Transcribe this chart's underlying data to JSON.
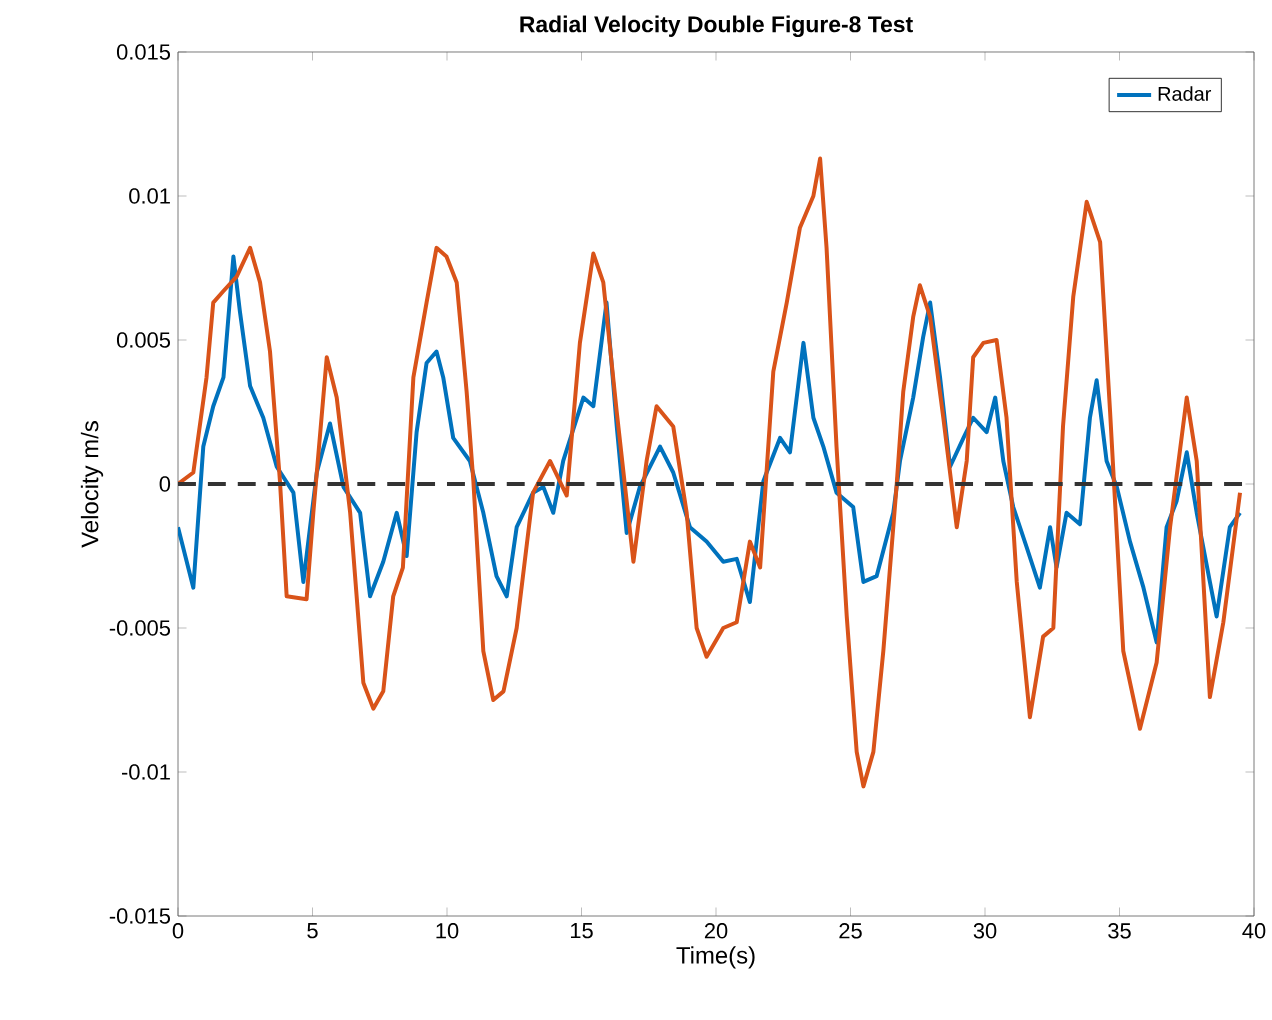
{
  "chart_data": {
    "type": "line",
    "title": "Radial Velocity Double Figure-8 Test",
    "xlabel": "Time(s)",
    "ylabel": "Velocity m/s",
    "xlim": [
      0,
      40
    ],
    "ylim": [
      -0.015,
      0.015
    ],
    "xticks": [
      0,
      5,
      10,
      15,
      20,
      25,
      30,
      35,
      40
    ],
    "yticks": [
      -0.015,
      -0.01,
      -0.005,
      0,
      0.005,
      0.01,
      0.015
    ],
    "grid": false,
    "legend": "top right",
    "marker": "none",
    "line_style": "solid",
    "ref_lines": [
      {
        "axis": "y",
        "value": 0,
        "color": "#333333",
        "line_style": "dashed"
      }
    ],
    "series": [
      {
        "name": "Radar",
        "color": "#0072bd",
        "x": [
          0,
          0.57,
          0.94,
          1.31,
          1.69,
          2.06,
          2.3,
          2.68,
          3.17,
          3.67,
          4.29,
          4.66,
          5.16,
          5.65,
          6.15,
          6.77,
          7.14,
          7.63,
          8.13,
          8.5,
          8.87,
          9.24,
          9.61,
          9.86,
          10.23,
          10.85,
          11.35,
          11.84,
          12.22,
          12.59,
          13.2,
          13.58,
          13.95,
          14.32,
          15.07,
          15.44,
          15.93,
          16.31,
          16.68,
          17.17,
          17.92,
          18.41,
          19.03,
          19.65,
          20.27,
          20.77,
          21.26,
          21.76,
          22.38,
          22.75,
          23.25,
          23.62,
          23.99,
          24.48,
          25.1,
          25.48,
          25.97,
          26.59,
          26.84,
          27.33,
          27.7,
          27.96,
          28.33,
          28.7,
          29.2,
          29.56,
          30.06,
          30.38,
          30.68,
          31.05,
          31.55,
          32.04,
          32.42,
          32.66,
          33.03,
          33.53,
          33.9,
          34.15,
          34.52,
          34.9,
          35.39,
          35.89,
          36.38,
          36.75,
          37.12,
          37.5,
          37.87,
          38.36,
          38.61,
          39.1,
          39.48
        ],
        "values": [
          -0.0015,
          -0.0036,
          0.0013,
          0.0027,
          0.0037,
          0.0079,
          0.006,
          0.0034,
          0.0023,
          0.0006,
          -0.0003,
          -0.0034,
          0.0004,
          0.0021,
          -0.0001,
          -0.001,
          -0.0039,
          -0.0027,
          -0.001,
          -0.0025,
          0.0018,
          0.0042,
          0.0046,
          0.0037,
          0.0016,
          0.0008,
          -0.001,
          -0.0032,
          -0.0039,
          -0.0015,
          -0.0003,
          -0.0001,
          -0.001,
          0.0008,
          0.003,
          0.0027,
          0.0063,
          0.002,
          -0.0017,
          -0.0001,
          0.0013,
          0.0004,
          -0.0015,
          -0.002,
          -0.0027,
          -0.0026,
          -0.0041,
          0.0001,
          0.0016,
          0.0011,
          0.0049,
          0.0023,
          0.0013,
          -0.0003,
          -0.0008,
          -0.0034,
          -0.0032,
          -0.001,
          0.0008,
          0.003,
          0.0051,
          0.0063,
          0.0037,
          0.0006,
          0.0016,
          0.0023,
          0.0018,
          0.003,
          0.0008,
          -0.0008,
          -0.0022,
          -0.0036,
          -0.0015,
          -0.0029,
          -0.001,
          -0.0014,
          0.0023,
          0.0036,
          0.0008,
          -0.0001,
          -0.002,
          -0.0036,
          -0.0055,
          -0.0015,
          -0.0006,
          0.0011,
          -0.001,
          -0.0034,
          -0.0046,
          -0.0015,
          -0.001
        ]
      },
      {
        "color": "#d95319",
        "x": [
          0,
          0.57,
          1.06,
          1.31,
          1.69,
          2.18,
          2.68,
          3.05,
          3.42,
          3.79,
          4.04,
          4.78,
          5.03,
          5.53,
          5.9,
          6.4,
          6.89,
          7.26,
          7.63,
          8.0,
          8.36,
          8.75,
          9.24,
          9.61,
          9.98,
          10.36,
          10.73,
          10.98,
          11.35,
          11.72,
          12.1,
          12.59,
          13.2,
          13.83,
          14.45,
          14.94,
          15.44,
          15.81,
          16.31,
          16.93,
          17.42,
          17.79,
          18.41,
          18.91,
          19.28,
          19.65,
          20.27,
          20.77,
          21.26,
          21.64,
          22.13,
          22.63,
          23.12,
          23.62,
          23.87,
          24.11,
          24.48,
          24.86,
          25.23,
          25.48,
          25.85,
          26.22,
          26.71,
          26.96,
          27.33,
          27.58,
          27.96,
          28.45,
          28.95,
          29.32,
          29.56,
          29.94,
          30.43,
          30.8,
          31.18,
          31.67,
          32.16,
          32.54,
          32.9,
          33.28,
          33.78,
          34.28,
          34.65,
          35.14,
          35.76,
          36.38,
          36.88,
          37.5,
          37.87,
          38.36,
          38.86,
          39.48
        ],
        "values": [
          0,
          0.0004,
          0.0037,
          0.0063,
          0.0067,
          0.0072,
          0.0082,
          0.007,
          0.0046,
          0.0001,
          -0.0039,
          -0.004,
          -0.001,
          0.0044,
          0.003,
          -0.001,
          -0.0069,
          -0.0078,
          -0.0072,
          -0.0039,
          -0.0029,
          0.0037,
          0.0063,
          0.0082,
          0.0079,
          0.007,
          0.0032,
          0.0001,
          -0.0058,
          -0.0075,
          -0.0072,
          -0.005,
          -0.0003,
          0.0008,
          -0.0004,
          0.0049,
          0.008,
          0.007,
          0.0025,
          -0.0027,
          0.0008,
          0.0027,
          0.002,
          -0.001,
          -0.005,
          -0.006,
          -0.005,
          -0.0048,
          -0.002,
          -0.0029,
          0.0039,
          0.0063,
          0.0089,
          0.01,
          0.0113,
          0.0082,
          0.0013,
          -0.0046,
          -0.0093,
          -0.0105,
          -0.0093,
          -0.0058,
          -0.0001,
          0.0032,
          0.0058,
          0.0069,
          0.0058,
          0.0023,
          -0.0015,
          0.0008,
          0.0044,
          0.0049,
          0.005,
          0.0023,
          -0.0034,
          -0.0081,
          -0.0053,
          -0.005,
          0.002,
          0.0065,
          0.0098,
          0.0084,
          0.0025,
          -0.0058,
          -0.0085,
          -0.0062,
          -0.0015,
          0.003,
          0.0008,
          -0.0074,
          -0.0048,
          -0.0003
        ]
      }
    ]
  }
}
